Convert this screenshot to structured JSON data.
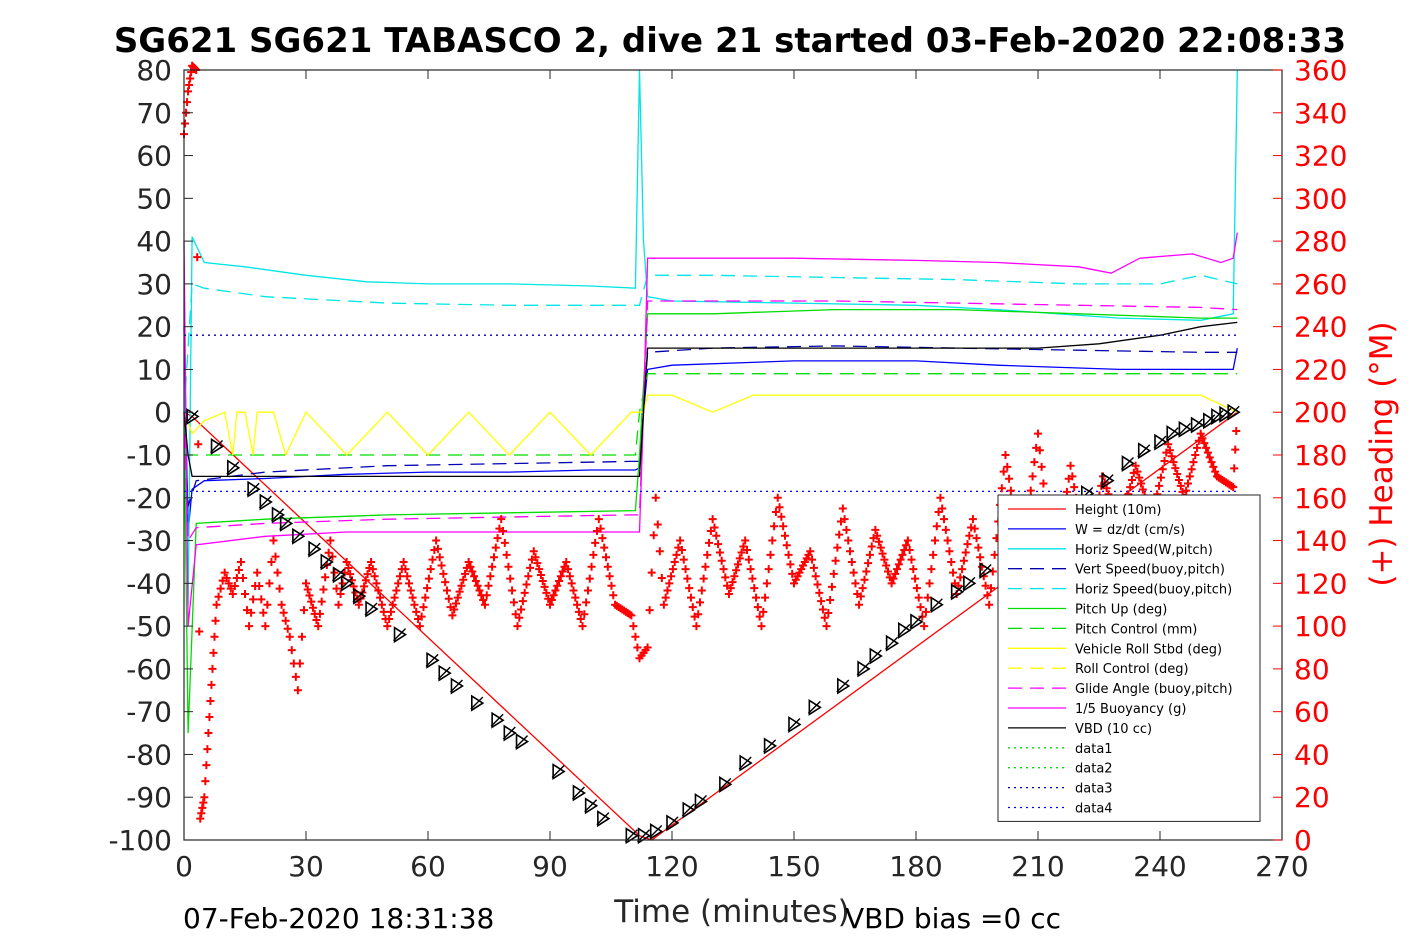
{
  "chart_data": {
    "type": "line",
    "title": "SG621 SG621 TABASCO 2, dive 21 started 03-Feb-2020 22:08:33",
    "xlabel": "Time (minutes)",
    "ylabel_right": "(+) Heading (°M)",
    "xlim": [
      0,
      270
    ],
    "ylim": [
      -100,
      80
    ],
    "ylim_right": [
      0,
      360
    ],
    "x_ticks": [
      0,
      30,
      60,
      90,
      120,
      150,
      180,
      210,
      240,
      270
    ],
    "y_ticks": [
      80,
      70,
      60,
      50,
      40,
      30,
      20,
      10,
      0,
      -10,
      -20,
      -30,
      -40,
      -50,
      -60,
      -70,
      -80,
      -90,
      -100
    ],
    "y_ticks_right": [
      360,
      340,
      320,
      300,
      280,
      260,
      240,
      220,
      200,
      180,
      160,
      140,
      120,
      100,
      80,
      60,
      40,
      20,
      0
    ],
    "footer_left": "07-Feb-2020 18:31:38",
    "footer_right": "VBD bias =0 cc",
    "grid": false,
    "legend_position": "bottom-right",
    "colors": {
      "red": "#ff0000",
      "blue": "#0000ff",
      "cyan": "#00e5e5",
      "navy": "#0000b0",
      "green": "#00dd00",
      "yellow": "#ffff00",
      "magenta": "#ff00ff",
      "black": "#000000"
    },
    "legend": [
      {
        "label": "Height (10m)",
        "color": "#ff0000",
        "style": "solid"
      },
      {
        "label": "W = dz/dt (cm/s)",
        "color": "#0000ff",
        "style": "solid"
      },
      {
        "label": "Horiz Speed(W,pitch)",
        "color": "#00e5e5",
        "style": "solid"
      },
      {
        "label": "Vert Speed(buoy,pitch)",
        "color": "#0000b0",
        "style": "dashed"
      },
      {
        "label": "Horiz Speed(buoy,pitch)",
        "color": "#00e5e5",
        "style": "dashed"
      },
      {
        "label": "Pitch Up (deg)",
        "color": "#00dd00",
        "style": "solid"
      },
      {
        "label": "Pitch Control (mm)",
        "color": "#00dd00",
        "style": "dashed"
      },
      {
        "label": "Vehicle Roll Stbd (deg)",
        "color": "#ffff00",
        "style": "solid"
      },
      {
        "label": "Roll Control (deg)",
        "color": "#ffff00",
        "style": "dashed"
      },
      {
        "label": "Glide Angle (buoy,pitch)",
        "color": "#ff00ff",
        "style": "dashed"
      },
      {
        "label": "1/5 Buoyancy (g)",
        "color": "#ff00ff",
        "style": "solid"
      },
      {
        "label": "VBD (10 cc)",
        "color": "#000000",
        "style": "solid"
      },
      {
        "label": "data1",
        "color": "#00dd00",
        "style": "dotted"
      },
      {
        "label": "data2",
        "color": "#00dd00",
        "style": "dotted"
      },
      {
        "label": "data3",
        "color": "#0000b0",
        "style": "dotted"
      },
      {
        "label": "data4",
        "color": "#0000ff",
        "style": "dotted"
      }
    ],
    "series": [
      {
        "name": "Height (10m)",
        "axis": "left",
        "color": "#ff0000",
        "x": [
          0,
          2,
          112,
          115,
          259
        ],
        "y": [
          0,
          -1,
          -99,
          -100,
          0
        ]
      },
      {
        "name": "W = dz/dt (cm/s)",
        "axis": "left",
        "color": "#0000ff",
        "x": [
          0,
          1,
          2,
          5,
          20,
          40,
          60,
          80,
          100,
          111,
          112,
          113,
          114,
          120,
          150,
          180,
          200,
          230,
          250,
          258,
          259
        ],
        "y": [
          20,
          -28,
          -18,
          -16,
          -15.5,
          -14.5,
          -14,
          -14,
          -13.5,
          -13.5,
          -13,
          0,
          10,
          11,
          12,
          12,
          11,
          10,
          10,
          10,
          15
        ]
      },
      {
        "name": "Horiz Speed(W,pitch)",
        "axis": "left",
        "color": "#00e5e5",
        "x": [
          0,
          1,
          2,
          5,
          15,
          30,
          45,
          60,
          80,
          100,
          111,
          112,
          113,
          114,
          120,
          150,
          180,
          200,
          230,
          250,
          258,
          259
        ],
        "y": [
          10,
          -45,
          41,
          35,
          34,
          32,
          30.5,
          30,
          30,
          29.5,
          29,
          80,
          40,
          27,
          26,
          25.5,
          25,
          24,
          22,
          21.5,
          23,
          80
        ]
      },
      {
        "name": "Vert Speed(buoy,pitch)",
        "axis": "left",
        "color": "#0000b0",
        "x": [
          0,
          1,
          3,
          20,
          50,
          80,
          110,
          112,
          114,
          130,
          160,
          190,
          220,
          250,
          259
        ],
        "y": [
          0,
          -22,
          -16,
          -14,
          -12.5,
          -12,
          -11.5,
          -11.5,
          14,
          15,
          15.5,
          15,
          14.5,
          14,
          14
        ]
      },
      {
        "name": "Horiz Speed(buoy,pitch)",
        "axis": "left",
        "color": "#00e5e5",
        "x": [
          0,
          2,
          5,
          20,
          50,
          80,
          110,
          112,
          114,
          130,
          160,
          190,
          220,
          240,
          250,
          259
        ],
        "y": [
          0,
          30,
          29,
          27,
          25.5,
          25,
          25,
          25,
          32,
          32,
          31.5,
          31,
          30,
          30,
          32,
          30
        ]
      },
      {
        "name": "Pitch Up (deg)",
        "axis": "left",
        "color": "#00dd00",
        "x": [
          0,
          1,
          3,
          20,
          50,
          80,
          111,
          112,
          114,
          130,
          160,
          190,
          220,
          250,
          259
        ],
        "y": [
          0,
          -75,
          -26,
          -25,
          -24,
          -23.5,
          -23,
          -10,
          23,
          23,
          24,
          24,
          23,
          22,
          22
        ]
      },
      {
        "name": "Pitch Control (mm)",
        "axis": "left",
        "color": "#00dd00",
        "x": [
          0,
          2,
          50,
          111,
          112,
          114,
          259
        ],
        "y": [
          -10,
          -10,
          -10,
          -10,
          0,
          9,
          9
        ]
      },
      {
        "name": "Vehicle Roll Stbd (deg)",
        "axis": "left",
        "color": "#ffff00",
        "x": [
          0,
          2,
          5,
          10,
          12,
          13,
          15,
          17,
          18,
          22,
          25,
          30,
          40,
          50,
          60,
          70,
          80,
          90,
          100,
          110,
          111,
          113,
          114,
          120,
          130,
          140,
          150,
          160,
          170,
          180,
          190,
          200,
          210,
          220,
          230,
          240,
          250,
          259
        ],
        "y": [
          0,
          -5,
          -2,
          0,
          -10,
          0,
          0,
          -10,
          0,
          0,
          -10,
          0,
          -10,
          0,
          -10,
          0,
          -10,
          0,
          -10,
          0,
          0,
          0,
          4,
          4,
          0,
          4,
          4,
          4,
          4,
          4,
          4,
          4,
          4,
          4,
          4,
          4,
          4,
          0
        ]
      },
      {
        "name": "Glide Angle (buoy,pitch)",
        "axis": "left",
        "color": "#ff00ff",
        "x": [
          0,
          1,
          3,
          20,
          50,
          80,
          110,
          112,
          114,
          130,
          160,
          190,
          220,
          250,
          259
        ],
        "y": [
          0,
          -30,
          -27,
          -26,
          -25,
          -24.5,
          -24,
          -24,
          26,
          26,
          26,
          25.5,
          25,
          24.5,
          24
        ]
      },
      {
        "name": "1/5 Buoyancy (g)",
        "axis": "left",
        "color": "#ff00ff",
        "x": [
          0,
          1,
          3,
          20,
          40,
          60,
          80,
          100,
          112,
          113,
          114,
          120,
          150,
          180,
          200,
          220,
          228,
          235,
          248,
          255,
          258,
          259
        ],
        "y": [
          40,
          -50,
          -31,
          -29,
          -28,
          -28,
          -28,
          -28,
          -28,
          0,
          36,
          36,
          36,
          35.5,
          35,
          34,
          32.5,
          36,
          37,
          35,
          36,
          42
        ]
      },
      {
        "name": "VBD (10 cc)",
        "axis": "left",
        "color": "#000000",
        "x": [
          0,
          1,
          2,
          112,
          113,
          114,
          140,
          180,
          210,
          225,
          240,
          250,
          259
        ],
        "y": [
          0,
          -10,
          -15,
          -15,
          0,
          15,
          15,
          15,
          15,
          16,
          18,
          20,
          21
        ]
      },
      {
        "name": "data3",
        "axis": "left",
        "color": "#0000b0",
        "x": [
          0,
          259
        ],
        "y": [
          18,
          18
        ]
      },
      {
        "name": "data4",
        "axis": "left",
        "color": "#0000ff",
        "x": [
          0,
          259
        ],
        "y": [
          -18.5,
          -18.5
        ]
      },
      {
        "name": "Heading (+)",
        "axis": "right",
        "color": "#ff0000",
        "x": [
          0,
          1,
          2,
          3,
          4,
          5,
          6,
          7,
          8,
          10,
          12,
          14,
          16,
          18,
          20,
          22,
          24,
          26,
          28,
          30,
          33,
          36,
          38,
          40,
          43,
          46,
          50,
          54,
          58,
          62,
          66,
          70,
          74,
          78,
          82,
          86,
          90,
          94,
          98,
          102,
          106,
          110,
          112,
          114,
          116,
          118,
          122,
          126,
          130,
          134,
          138,
          142,
          146,
          150,
          154,
          158,
          162,
          166,
          170,
          174,
          178,
          182,
          186,
          190,
          194,
          198,
          202,
          206,
          210,
          214,
          218,
          222,
          226,
          230,
          234,
          238,
          242,
          246,
          250,
          254,
          258,
          259
        ],
        "y": [
          330,
          350,
          362,
          360,
          10,
          20,
          50,
          80,
          110,
          125,
          115,
          130,
          100,
          125,
          100,
          140,
          110,
          95,
          70,
          120,
          100,
          140,
          110,
          130,
          110,
          130,
          100,
          130,
          100,
          140,
          105,
          130,
          110,
          150,
          100,
          135,
          110,
          130,
          100,
          150,
          110,
          105,
          85,
          90,
          160,
          110,
          140,
          100,
          150,
          115,
          140,
          100,
          160,
          120,
          135,
          100,
          155,
          110,
          145,
          120,
          140,
          100,
          160,
          115,
          150,
          110,
          180,
          130,
          190,
          120,
          175,
          130,
          170,
          145,
          175,
          150,
          185,
          160,
          190,
          170,
          165,
          200
        ]
      },
      {
        "name": "Depth markers",
        "axis": "left",
        "color": "#000000",
        "marker": "triangle",
        "x": [
          2,
          8,
          12,
          17,
          20,
          23,
          25,
          28,
          32,
          35,
          38,
          40,
          43,
          46,
          53,
          61,
          64,
          67,
          72,
          77,
          80,
          83,
          92,
          97,
          100,
          103,
          110,
          113,
          116,
          120,
          124,
          127,
          133,
          138,
          144,
          150,
          155,
          162,
          167,
          170,
          174,
          177,
          180,
          185,
          190,
          193,
          197,
          202,
          207,
          212,
          217,
          222,
          227,
          232,
          236,
          240,
          243,
          246,
          249,
          252,
          254,
          256,
          258
        ],
        "y": [
          -1,
          -8,
          -13,
          -18,
          -21,
          -24,
          -26,
          -29,
          -32,
          -35,
          -38,
          -40,
          -43,
          -46,
          -52,
          -58,
          -61,
          -64,
          -68,
          -72,
          -75,
          -77,
          -84,
          -89,
          -92,
          -95,
          -99,
          -99,
          -98,
          -96,
          -93,
          -91,
          -87,
          -82,
          -78,
          -73,
          -69,
          -64,
          -60,
          -57,
          -54,
          -51,
          -49,
          -45,
          -42,
          -40,
          -37,
          -33,
          -29,
          -26,
          -22,
          -19,
          -16,
          -12,
          -9,
          -7,
          -5,
          -4,
          -3,
          -2,
          -1,
          -0.5,
          0
        ]
      }
    ]
  }
}
